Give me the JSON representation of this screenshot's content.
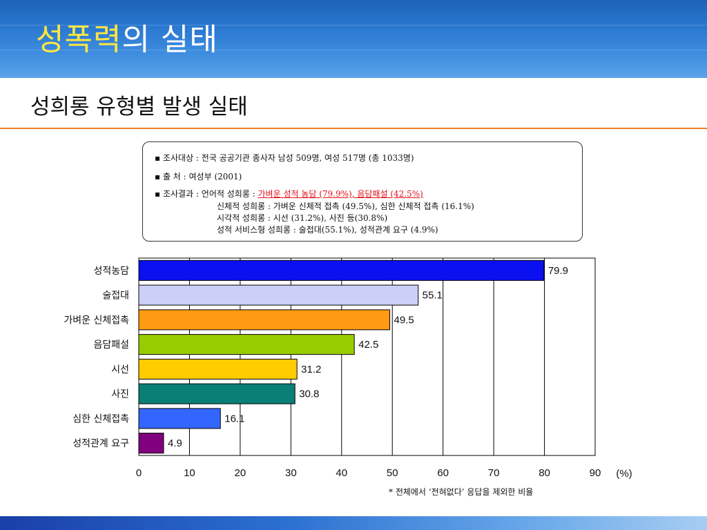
{
  "header": {
    "title_highlight": "성폭력",
    "title_rest": "의 실태"
  },
  "subtitle": "성희롱 유형별 발생 실태",
  "info": {
    "line1": "▪ 조사대상 : 전국 공공기관 종사자 남성 509명, 여성 517명 (총 1033명)",
    "line2": "▪ 출      처 : 여성부  (2001)",
    "line3_prefix": "▪ 조사결과 : 언어적 성희롱 : ",
    "line3_highlight": "가벼운 성적 농담 (79.9%), 음담패설 (42.5%)",
    "line4": "신체적 성희롱 : 가벼운 신체적 접촉 (49.5%), 심한 신체적 접촉 (16.1%)",
    "line5": "시각적 성희롱 : 시선 (31.2%), 사진 등(30.8%)",
    "line6": "성적 서비스형 성희롱 : 술접대(55.1%), 성적관계 요구 (4.9%)"
  },
  "footnote": "* 전체에서 ‘전혀없다’ 응답을 제외한 비율",
  "chart_data": {
    "type": "bar",
    "orientation": "horizontal",
    "categories": [
      "성적농담",
      "술접대",
      "가벼운 신체접촉",
      "음담패설",
      "시선",
      "사진",
      "심한 신체접촉",
      "성적관계 요구"
    ],
    "values": [
      79.9,
      55.1,
      49.5,
      42.5,
      31.2,
      30.8,
      16.1,
      4.9
    ],
    "value_labels": [
      "79.9",
      "55.1",
      "49.5",
      "42.5",
      "31.2",
      "30.8",
      "16.1",
      "4.9"
    ],
    "colors": [
      "#0a10f0",
      "#cccff8",
      "#ff9a14",
      "#99cc00",
      "#ffcc00",
      "#0a7f76",
      "#3366ff",
      "#800080"
    ],
    "xlim": [
      0,
      90
    ],
    "xticks": [
      0,
      10,
      20,
      30,
      40,
      50,
      60,
      70,
      80,
      90
    ],
    "xticklabels": [
      "0",
      "10",
      "20",
      "30",
      "40",
      "50",
      "60",
      "70",
      "80",
      "90"
    ],
    "unit_label": "(%)",
    "grid": true
  }
}
